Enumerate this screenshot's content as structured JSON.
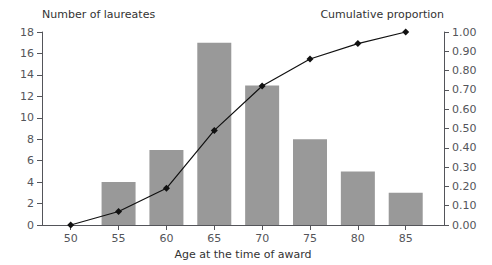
{
  "chart_data": {
    "type": "bar",
    "xlabel": "Age at the time of award",
    "ylabel": "Number of laureates",
    "y2label": "Cumulative proportion",
    "x": [
      50,
      55,
      60,
      65,
      70,
      75,
      80,
      85
    ],
    "xlim": [
      47,
      89
    ],
    "xticks": [
      50,
      55,
      60,
      65,
      70,
      75,
      80,
      85
    ],
    "ylim": [
      0,
      18
    ],
    "yticks": [
      0,
      2,
      4,
      6,
      8,
      10,
      12,
      14,
      16,
      18
    ],
    "y2lim": [
      0.0,
      1.0
    ],
    "y2ticks": [
      {
        "value": 0.0,
        "label": "0.00"
      },
      {
        "value": 0.1,
        "label": "0.10"
      },
      {
        "value": 0.2,
        "label": "0.20"
      },
      {
        "value": 0.3,
        "label": "0.30"
      },
      {
        "value": 0.4,
        "label": "0.40"
      },
      {
        "value": 0.5,
        "label": "0.50"
      },
      {
        "value": 0.6,
        "label": "0.60"
      },
      {
        "value": 0.7,
        "label": "0.70"
      },
      {
        "value": 0.8,
        "label": "0.80"
      },
      {
        "value": 0.9,
        "label": "0.90"
      },
      {
        "value": 1.0,
        "label": "1.00"
      }
    ],
    "grid": false,
    "series": [
      {
        "type": "bar",
        "color": "#999999",
        "values": [
          0,
          4,
          7,
          17,
          13,
          8,
          5,
          3
        ]
      },
      {
        "type": "line",
        "axis": "y2",
        "color": "#111111",
        "marker": "diamond",
        "values": [
          0.0,
          0.07,
          0.19,
          0.49,
          0.72,
          0.86,
          0.94,
          1.0
        ]
      }
    ]
  }
}
